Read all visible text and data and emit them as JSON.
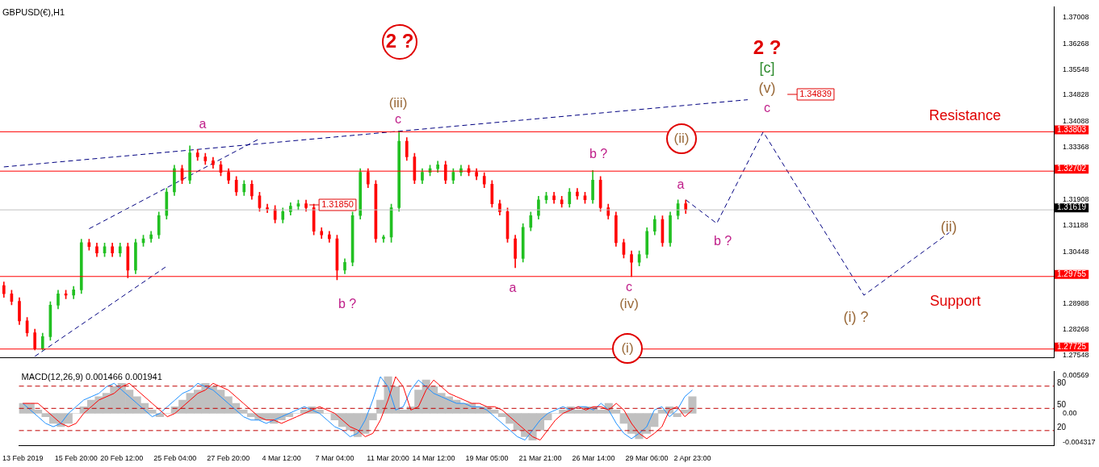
{
  "chart_data": [
    {
      "type": "candlestick",
      "title": "GBPUSD(€),H1",
      "categories": [
        null,
        null,
        null,
        null,
        null,
        null,
        null,
        null,
        null,
        null,
        null,
        null,
        null,
        null,
        null,
        null,
        null,
        null,
        null,
        null,
        null,
        null,
        null,
        null,
        null,
        null,
        null,
        null,
        null,
        null,
        null,
        null,
        null,
        null,
        null,
        null,
        null,
        null,
        null,
        null,
        null,
        null,
        null,
        null,
        null,
        null,
        null,
        null,
        null,
        null,
        null,
        null,
        null,
        null,
        null,
        null,
        null,
        null,
        null,
        null,
        null,
        null,
        null,
        null,
        null,
        null,
        null,
        null,
        null,
        null,
        null,
        null,
        null,
        null,
        null,
        null,
        null,
        null,
        null,
        null,
        null,
        null,
        null,
        null,
        null,
        null,
        null,
        null,
        null,
        null,
        null,
        null,
        null,
        null,
        null,
        null,
        null,
        null,
        null,
        null,
        null,
        null,
        null,
        null,
        null,
        null,
        null,
        null,
        null,
        null,
        null,
        null,
        null,
        null,
        null,
        null,
        null,
        null,
        null,
        null,
        null,
        null,
        null,
        null,
        null,
        null,
        null,
        null,
        null,
        null,
        null,
        null,
        null,
        null,
        null,
        null
      ],
      "ohlc": [
        [
          1.295,
          1.296,
          1.2917,
          1.2927
        ],
        [
          1.2927,
          1.2937,
          1.2896,
          1.2906
        ],
        [
          1.2906,
          1.2916,
          1.2841,
          1.2851
        ],
        [
          1.2851,
          1.2861,
          1.2808,
          1.2818
        ],
        [
          1.2818,
          1.2828,
          1.277,
          1.2774
        ],
        [
          1.2774,
          1.2817,
          1.277,
          1.2807
        ],
        [
          1.2807,
          1.2905,
          1.2797,
          1.2895
        ],
        [
          1.2895,
          1.2937,
          1.2885,
          1.2927
        ],
        [
          1.2927,
          1.2937,
          1.2913,
          1.2923
        ],
        [
          1.2923,
          1.2948,
          1.2913,
          1.2938
        ],
        [
          1.2938,
          1.308,
          1.2928,
          1.307
        ],
        [
          1.307,
          1.308,
          1.3049,
          1.3059
        ],
        [
          1.3059,
          1.3069,
          1.3031,
          1.3041
        ],
        [
          1.3041,
          1.3069,
          1.3031,
          1.3059
        ],
        [
          1.3059,
          1.3069,
          1.3031,
          1.3041
        ],
        [
          1.3041,
          1.3069,
          1.3031,
          1.3059
        ],
        [
          1.3059,
          1.3069,
          1.2972,
          1.2993
        ],
        [
          1.2993,
          1.308,
          1.2983,
          1.307
        ],
        [
          1.307,
          1.3091,
          1.306,
          1.3081
        ],
        [
          1.3081,
          1.3102,
          1.3071,
          1.3092
        ],
        [
          1.3092,
          1.3156,
          1.3082,
          1.3146
        ],
        [
          1.3146,
          1.3222,
          1.3136,
          1.3212
        ],
        [
          1.3212,
          1.3287,
          1.3202,
          1.3277
        ],
        [
          1.3277,
          1.3287,
          1.3235,
          1.3245
        ],
        [
          1.3245,
          1.3341,
          1.3235,
          1.3321
        ],
        [
          1.3321,
          1.3331,
          1.33,
          1.331
        ],
        [
          1.331,
          1.332,
          1.3289,
          1.3299
        ],
        [
          1.3299,
          1.3309,
          1.3278,
          1.3288
        ],
        [
          1.3288,
          1.3298,
          1.3257,
          1.3267
        ],
        [
          1.3267,
          1.3277,
          1.3235,
          1.3245
        ],
        [
          1.3245,
          1.3255,
          1.3202,
          1.3212
        ],
        [
          1.3212,
          1.3244,
          1.3202,
          1.3234
        ],
        [
          1.3234,
          1.3244,
          1.3191,
          1.3201
        ],
        [
          1.3201,
          1.3211,
          1.3158,
          1.3168
        ],
        [
          1.3168,
          1.3178,
          1.3154,
          1.3164
        ],
        [
          1.3164,
          1.3174,
          1.3125,
          1.3135
        ],
        [
          1.3135,
          1.3167,
          1.3125,
          1.3157
        ],
        [
          1.3157,
          1.3182,
          1.3147,
          1.3172
        ],
        [
          1.3172,
          1.3189,
          1.3162,
          1.3179
        ],
        [
          1.3179,
          1.3189,
          1.3158,
          1.3168
        ],
        [
          1.3168,
          1.3178,
          1.3092,
          1.3102
        ],
        [
          1.3102,
          1.3112,
          1.3082,
          1.3092
        ],
        [
          1.3092,
          1.3102,
          1.3071,
          1.3081
        ],
        [
          1.3081,
          1.3091,
          1.2966,
          1.2993
        ],
        [
          1.2993,
          1.3025,
          1.2983,
          1.3015
        ],
        [
          1.3015,
          1.3156,
          1.3005,
          1.3146
        ],
        [
          1.3146,
          1.3277,
          1.3136,
          1.3267
        ],
        [
          1.3267,
          1.3277,
          1.3224,
          1.3234
        ],
        [
          1.3234,
          1.3244,
          1.3071,
          1.3081
        ],
        [
          1.3081,
          1.3091,
          1.3071,
          1.3086
        ],
        [
          1.3086,
          1.3178,
          1.3071,
          1.3168
        ],
        [
          1.3168,
          1.3381,
          1.3158,
          1.3354
        ],
        [
          1.3354,
          1.3364,
          1.33,
          1.331
        ],
        [
          1.331,
          1.332,
          1.3235,
          1.3245
        ],
        [
          1.3245,
          1.3277,
          1.3235,
          1.3267
        ],
        [
          1.3267,
          1.3287,
          1.3257,
          1.3277
        ],
        [
          1.3277,
          1.3298,
          1.3267,
          1.3288
        ],
        [
          1.3288,
          1.3298,
          1.3235,
          1.3245
        ],
        [
          1.3245,
          1.3277,
          1.3235,
          1.3267
        ],
        [
          1.3267,
          1.3287,
          1.3257,
          1.3277
        ],
        [
          1.3277,
          1.3287,
          1.3257,
          1.3267
        ],
        [
          1.3267,
          1.3277,
          1.3246,
          1.3256
        ],
        [
          1.3256,
          1.3266,
          1.3224,
          1.3234
        ],
        [
          1.3234,
          1.3244,
          1.3169,
          1.3179
        ],
        [
          1.3179,
          1.3189,
          1.3147,
          1.3157
        ],
        [
          1.3157,
          1.3167,
          1.3071,
          1.3081
        ],
        [
          1.3081,
          1.3091,
          1.3,
          1.3026
        ],
        [
          1.3026,
          1.3123,
          1.3016,
          1.3113
        ],
        [
          1.3113,
          1.3156,
          1.3103,
          1.3146
        ],
        [
          1.3146,
          1.32,
          1.3136,
          1.319
        ],
        [
          1.319,
          1.3211,
          1.318,
          1.3201
        ],
        [
          1.3201,
          1.3211,
          1.318,
          1.319
        ],
        [
          1.319,
          1.32,
          1.3169,
          1.3179
        ],
        [
          1.3179,
          1.3222,
          1.3169,
          1.3212
        ],
        [
          1.3212,
          1.3222,
          1.3191,
          1.3201
        ],
        [
          1.3201,
          1.3211,
          1.318,
          1.319
        ],
        [
          1.319,
          1.3272,
          1.318,
          1.3245
        ],
        [
          1.3245,
          1.3255,
          1.3158,
          1.3168
        ],
        [
          1.3168,
          1.3178,
          1.3136,
          1.3146
        ],
        [
          1.3146,
          1.3156,
          1.306,
          1.307
        ],
        [
          1.307,
          1.308,
          1.3027,
          1.3037
        ],
        [
          1.3037,
          1.3047,
          1.2975,
          1.3015
        ],
        [
          1.3015,
          1.3047,
          1.3005,
          1.3037
        ],
        [
          1.3037,
          1.3112,
          1.3027,
          1.3102
        ],
        [
          1.3102,
          1.3145,
          1.3092,
          1.3135
        ],
        [
          1.3135,
          1.3145,
          1.306,
          1.307
        ],
        [
          1.307,
          1.3156,
          1.306,
          1.3146
        ],
        [
          1.3146,
          1.319,
          1.3136,
          1.3179
        ],
        [
          1.3179,
          1.3189,
          1.3152,
          1.3162
        ],
        null,
        null,
        null,
        null,
        null,
        null,
        null,
        null,
        null,
        null,
        null,
        null,
        null,
        null,
        null,
        null,
        null,
        null,
        null,
        null,
        null,
        null,
        null,
        null,
        null,
        null,
        null,
        null,
        null,
        null,
        null,
        null,
        null,
        null,
        null,
        null,
        null,
        null,
        null,
        null,
        null,
        null,
        null,
        null,
        null,
        null,
        null
      ],
      "series": [
        {
          "type": "line",
          "color": "#000080",
          "line_style": "dashed",
          "values": [
            1.3282,
            null,
            null,
            null,
            null,
            null,
            null,
            null,
            null,
            null,
            null,
            null,
            null,
            null,
            null,
            null,
            null,
            null,
            null,
            null,
            null,
            null,
            null,
            null,
            null,
            null,
            null,
            null,
            null,
            null,
            null,
            null,
            null,
            null,
            null,
            null,
            null,
            null,
            null,
            null,
            null,
            null,
            null,
            null,
            null,
            null,
            null,
            null,
            null,
            null,
            null,
            null,
            null,
            null,
            null,
            null,
            null,
            null,
            null,
            null,
            null,
            null,
            null,
            null,
            null,
            null,
            null,
            null,
            null,
            null,
            null,
            null,
            null,
            null,
            null,
            null,
            null,
            null,
            null,
            null,
            null,
            null,
            null,
            null,
            null,
            null,
            null,
            null,
            null,
            null,
            null,
            null,
            null,
            null,
            null,
            null,
            1.347,
            null,
            null,
            null,
            null,
            null,
            null,
            null,
            null,
            null,
            null,
            null,
            null,
            null,
            null,
            null,
            null,
            null,
            null,
            null,
            null,
            null,
            null,
            null,
            null,
            null,
            null,
            null,
            null,
            null,
            null,
            null,
            null,
            null,
            null,
            null,
            null,
            null,
            null,
            null
          ]
        },
        {
          "type": "line",
          "color": "#000080",
          "line_style": "dashed",
          "values": [
            null,
            null,
            null,
            null,
            1.2752,
            null,
            null,
            null,
            null,
            null,
            null,
            null,
            null,
            null,
            null,
            null,
            null,
            null,
            null,
            null,
            null,
            1.3004,
            null,
            null,
            null,
            null,
            null,
            null,
            null,
            null,
            null,
            null,
            null,
            null,
            null,
            null,
            null,
            null,
            null,
            null,
            null,
            null,
            null,
            null,
            null,
            null,
            null,
            null,
            null,
            null,
            null,
            null,
            null,
            null,
            null,
            null,
            null,
            null,
            null,
            null,
            null,
            null,
            null,
            null,
            null,
            null,
            null,
            null,
            null,
            null,
            null,
            null,
            null,
            null,
            null,
            null,
            null,
            null,
            null,
            null,
            null,
            null,
            null,
            null,
            null,
            null,
            null,
            null,
            null,
            null,
            null,
            null,
            null,
            null,
            null,
            null,
            null,
            null,
            null,
            null,
            null,
            null,
            null,
            null,
            null,
            null,
            null,
            null,
            null,
            null,
            null,
            null,
            null,
            null,
            null,
            null,
            null,
            null,
            null,
            null,
            null,
            null,
            null,
            null,
            null,
            null,
            null,
            null,
            null,
            null,
            null,
            null,
            null,
            null,
            null,
            null
          ]
        },
        {
          "type": "line",
          "color": "#000080",
          "line_style": "dashed",
          "values": [
            null,
            null,
            null,
            null,
            null,
            null,
            null,
            null,
            null,
            null,
            null,
            1.3109,
            null,
            null,
            null,
            null,
            null,
            null,
            null,
            null,
            null,
            null,
            null,
            null,
            null,
            null,
            null,
            null,
            null,
            null,
            null,
            null,
            null,
            1.3361,
            null,
            null,
            null,
            null,
            null,
            null,
            null,
            null,
            null,
            null,
            null,
            null,
            null,
            null,
            null,
            null,
            null,
            null,
            null,
            null,
            null,
            null,
            null,
            null,
            null,
            null,
            null,
            null,
            null,
            null,
            null,
            null,
            null,
            null,
            null,
            null,
            null,
            null,
            null,
            null,
            null,
            null,
            null,
            null,
            null,
            null,
            null,
            null,
            null,
            null,
            null,
            null,
            null,
            null,
            null,
            null,
            null,
            null,
            null,
            null,
            null,
            null,
            null,
            null,
            null,
            null,
            null,
            null,
            null,
            null,
            null,
            null,
            null,
            null,
            null,
            null,
            null,
            null,
            null,
            null,
            null,
            null,
            null,
            null,
            null,
            null,
            null,
            null,
            null,
            null,
            null,
            null,
            null,
            null,
            null,
            null,
            null,
            null,
            null,
            null,
            null,
            null
          ]
        },
        {
          "type": "line",
          "color": "#000080",
          "line_style": "dashed",
          "values": [
            null,
            null,
            null,
            null,
            null,
            null,
            null,
            null,
            null,
            null,
            null,
            null,
            null,
            null,
            null,
            null,
            null,
            null,
            null,
            null,
            null,
            null,
            null,
            null,
            null,
            null,
            null,
            null,
            null,
            null,
            null,
            null,
            null,
            null,
            null,
            null,
            null,
            null,
            null,
            null,
            null,
            null,
            null,
            null,
            null,
            null,
            null,
            null,
            null,
            null,
            null,
            null,
            null,
            null,
            null,
            null,
            null,
            null,
            null,
            null,
            null,
            null,
            null,
            null,
            null,
            null,
            null,
            null,
            null,
            null,
            null,
            null,
            null,
            null,
            null,
            null,
            null,
            null,
            null,
            null,
            null,
            null,
            null,
            null,
            null,
            null,
            null,
            null,
            1.319,
            null,
            null,
            null,
            1.3124,
            null,
            null,
            null,
            null,
            null,
            1.338,
            null,
            null,
            null,
            null,
            null,
            null,
            null,
            null,
            null,
            null,
            null,
            null,
            1.2923,
            null,
            null,
            null,
            null,
            null,
            null,
            null,
            null,
            null,
            null,
            1.3098,
            null,
            null,
            null,
            null,
            null,
            null,
            null,
            null,
            null,
            null,
            null,
            null,
            null
          ]
        }
      ],
      "ylim": [
        1.2748,
        1.373
      ],
      "yticks": [
        1.37008,
        1.36268,
        1.35548,
        1.34828,
        1.34088,
        1.33368,
        1.31908,
        1.31188,
        1.30448,
        1.28988,
        1.28268,
        1.27548
      ],
      "tick_labels": "y",
      "ref_lines": [
        {
          "axis": "y",
          "value": 1.33803,
          "label": "1.33803",
          "color": "#ff0000"
        },
        {
          "axis": "y",
          "value": 1.32702,
          "label": "1.32702",
          "color": "#ff0000"
        },
        {
          "axis": "y",
          "value": 1.29755,
          "label": "1.29755",
          "color": "#ff0000"
        },
        {
          "axis": "y",
          "value": 1.27725,
          "label": "1.27725",
          "color": "#ff0000"
        },
        {
          "axis": "y",
          "value": 1.31619,
          "label": "1.31619",
          "color": "#c0c0c0"
        }
      ],
      "annotations": [
        "2 ?",
        "a",
        "(iii)",
        "c",
        "b ?",
        "a",
        "b ?",
        "c",
        "(iv)",
        "(i)",
        "(ii)",
        "a",
        "b ?",
        "2 ?",
        "[c]",
        "(v)",
        "c",
        "1.34839",
        "1.31850",
        "Resistance",
        "Support",
        "(ii)",
        "(i) ?"
      ]
    },
    {
      "type": "bar",
      "title": "MACD(12,26,9) 0.001466 0.001941",
      "categories": [
        "13 Feb 2019",
        null,
        null,
        null,
        null,
        null,
        null,
        "15 Feb 20:00",
        null,
        null,
        null,
        null,
        null,
        "20 Feb 12:00",
        null,
        null,
        null,
        null,
        null,
        null,
        "25 Feb 04:00",
        null,
        null,
        null,
        null,
        null,
        null,
        "27 Feb 20:00",
        null,
        null,
        null,
        null,
        null,
        null,
        "4 Mar 12:00",
        null,
        null,
        null,
        null,
        null,
        null,
        "7 Mar 04:00",
        null,
        null,
        null,
        null,
        null,
        null,
        "11 Mar 20:00",
        null,
        null,
        null,
        null,
        null,
        "14 Mar 12:00",
        null,
        null,
        null,
        null,
        null,
        null,
        "19 Mar 05:00",
        null,
        null,
        null,
        null,
        null,
        null,
        "21 Mar 21:00",
        null,
        null,
        null,
        null,
        null,
        null,
        "26 Mar 14:00",
        null,
        null,
        null,
        null,
        null,
        null,
        "29 Mar 06:00",
        null,
        null,
        null,
        null,
        null,
        "2 Apr 23:00",
        null,
        null,
        null,
        null,
        null,
        null,
        null,
        null,
        null,
        null,
        null,
        null,
        null,
        null,
        null,
        null,
        null,
        null,
        null,
        null,
        null,
        null,
        null,
        null,
        null,
        null,
        null,
        null,
        null,
        null,
        null,
        null,
        null,
        null,
        null,
        null,
        null,
        null,
        null,
        null,
        null,
        null,
        null,
        null,
        null,
        null,
        null
      ],
      "series": [
        {
          "type": "bar",
          "color": "#c0c0c0",
          "values": [
            0.0015,
            0.0015,
            0.0005,
            -0.0005,
            -0.0015,
            -0.002,
            -0.0015,
            0,
            0.001,
            0.002,
            0.0025,
            0.003,
            0.004,
            0.0045,
            0.0035,
            0.0025,
            0.0015,
            0.0005,
            -0.0005,
            0,
            0.001,
            0.002,
            0.003,
            0.0035,
            0.0045,
            0.004,
            0.0035,
            0.0025,
            0.0015,
            0.0005,
            -0.0005,
            -0.001,
            -0.001,
            -0.0015,
            -0.001,
            -0.0005,
            0,
            0.0005,
            0.001,
            0.0005,
            0,
            -0.001,
            -0.002,
            -0.0025,
            -0.0035,
            -0.003,
            -0.001,
            0.002,
            0.0055,
            0.004,
            0.0005,
            0.001,
            0.0035,
            0.005,
            0.004,
            0.003,
            0.0025,
            0.002,
            0.0015,
            0.0015,
            0.001,
            0.001,
            0.0005,
            -0.0005,
            -0.0015,
            -0.0025,
            -0.0035,
            -0.004,
            -0.0025,
            -0.001,
            0,
            0.0005,
            0.001,
            0.0005,
            0.001,
            0.001,
            0.0005,
            0.0015,
            0.0005,
            -0.0015,
            -0.003,
            -0.0038,
            -0.003,
            -0.002,
            0.0005,
            0.001,
            -0.0005,
            0.0005,
            0.0025,
            null,
            null,
            null,
            null,
            null,
            null,
            null,
            null,
            null,
            null,
            null,
            null,
            null,
            null,
            null,
            null,
            null,
            null,
            null,
            null,
            null,
            null,
            null,
            null,
            null,
            null,
            null,
            null,
            null,
            null,
            null,
            null,
            null,
            null,
            null,
            null,
            null,
            null,
            null,
            null,
            null,
            null,
            null,
            null,
            null,
            null,
            null
          ]
        },
        {
          "type": "line",
          "color": "#ff0000",
          "values": [
            0.0015,
            0.0015,
            0.0015,
            0.0005,
            -0.0005,
            -0.0015,
            -0.002,
            -0.0015,
            0,
            0.001,
            0.002,
            0.0025,
            0.003,
            0.004,
            0.0045,
            0.0035,
            0.0025,
            0.0015,
            0.0005,
            -0.0005,
            0,
            0.001,
            0.002,
            0.003,
            0.0035,
            0.0045,
            0.004,
            0.0035,
            0.0025,
            0.0015,
            0.0005,
            -0.0005,
            -0.001,
            -0.001,
            -0.0015,
            -0.001,
            -0.0005,
            0,
            0.0005,
            0.001,
            0.0005,
            0,
            -0.001,
            -0.002,
            -0.0025,
            -0.0035,
            -0.003,
            -0.001,
            0.002,
            0.0055,
            0.004,
            0.0005,
            0.001,
            0.0035,
            0.005,
            0.004,
            0.003,
            0.0025,
            0.002,
            0.0015,
            0.0015,
            0.001,
            0.001,
            0.0005,
            -0.0005,
            -0.0015,
            -0.0025,
            -0.0035,
            -0.004,
            -0.0025,
            -0.001,
            0,
            0.0005,
            0.001,
            0.0005,
            0.001,
            0.001,
            0.0005,
            0.0015,
            0.0005,
            -0.0015,
            -0.003,
            -0.0038,
            -0.003,
            -0.002,
            0.0005,
            0.001,
            -0.0005,
            0.0005,
            null,
            null,
            null,
            null,
            null,
            null,
            null,
            null,
            null,
            null,
            null,
            null,
            null,
            null,
            null,
            null,
            null,
            null,
            null,
            null,
            null,
            null,
            null,
            null,
            null,
            null,
            null,
            null,
            null,
            null,
            null,
            null,
            null,
            null,
            null,
            null,
            null,
            null,
            null,
            null,
            null,
            null,
            null,
            null,
            null,
            null,
            null
          ]
        },
        {
          "type": "line",
          "color": "#1e90ff",
          "values": [
            0.0015,
            0.0005,
            -0.0005,
            -0.0015,
            -0.002,
            -0.0015,
            0,
            0.001,
            0.002,
            0.0025,
            0.003,
            0.004,
            0.0045,
            0.0035,
            0.0025,
            0.0015,
            0.0005,
            -0.0005,
            0,
            0.001,
            0.002,
            0.003,
            0.0035,
            0.0045,
            0.004,
            0.0035,
            0.0025,
            0.0015,
            0.0005,
            -0.0005,
            -0.001,
            -0.001,
            -0.0015,
            -0.001,
            -0.0005,
            0,
            0.0005,
            0.001,
            0.0005,
            0,
            -0.001,
            -0.002,
            -0.0025,
            -0.0035,
            -0.003,
            -0.001,
            0.002,
            0.0055,
            0.004,
            0.0005,
            0.001,
            0.0035,
            0.005,
            0.004,
            0.003,
            0.0025,
            0.002,
            0.0015,
            0.0015,
            0.001,
            0.001,
            0.0005,
            -0.0005,
            -0.0015,
            -0.0025,
            -0.0035,
            -0.004,
            -0.0025,
            -0.001,
            0,
            0.0005,
            0.001,
            0.0005,
            0.001,
            0.001,
            0.0005,
            0.0015,
            0.0005,
            -0.0015,
            -0.003,
            -0.0038,
            -0.003,
            -0.002,
            0.0005,
            0.001,
            -0.0005,
            0.0005,
            0.0025,
            0.0035,
            null,
            null,
            null,
            null,
            null,
            null,
            null,
            null,
            null,
            null,
            null,
            null,
            null,
            null,
            null,
            null,
            null,
            null,
            null,
            null,
            null,
            null,
            null,
            null,
            null,
            null,
            null,
            null,
            null,
            null,
            null,
            null,
            null,
            null,
            null,
            null,
            null,
            null,
            null,
            null,
            null,
            null,
            null,
            null,
            null,
            null,
            null
          ]
        }
      ],
      "ylim": [
        -0.0048,
        0.0063
      ],
      "yticks": [
        0.00569,
        {
          "value": 0,
          "label": "0.00"
        },
        -0.004317
      ],
      "y2lim": [
        0,
        100
      ],
      "y2ticks": [
        80,
        50,
        20
      ],
      "ref_lines": [
        {
          "axis": "y2",
          "value": 80,
          "color": "#c00000",
          "line_style": "dashed"
        },
        {
          "axis": "y2",
          "value": 50,
          "color": "#c00000",
          "line_style": "dashed"
        },
        {
          "axis": "y2",
          "value": 20,
          "color": "#c00000",
          "line_style": "dashed"
        }
      ]
    }
  ]
}
